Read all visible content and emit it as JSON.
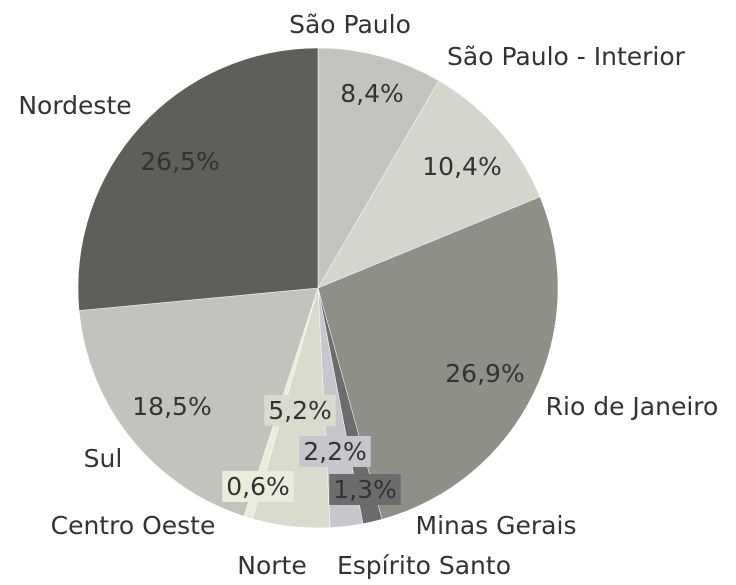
{
  "chart_data": {
    "type": "pie",
    "categories": [
      "São Paulo",
      "São Paulo - Interior",
      "Rio de Janeiro",
      "Minas Gerais",
      "Espírito Santo",
      "Norte",
      "Centro Oeste",
      "Sul",
      "Nordeste"
    ],
    "values": [
      8.4,
      10.4,
      26.9,
      1.3,
      2.2,
      5.2,
      0.6,
      18.5,
      26.5
    ],
    "value_labels": [
      "8,4%",
      "10,4%",
      "26,9%",
      "1,3%",
      "2,2%",
      "5,2%",
      "0,6%",
      "18,5%",
      "26,5%"
    ],
    "colors": [
      "#c4c4bf",
      "#d5d5ce",
      "#8f8f88",
      "#6c6c6c",
      "#c6c6cc",
      "#dadacd",
      "#ececdc",
      "#c3c3bd",
      "#5f5f59"
    ]
  }
}
